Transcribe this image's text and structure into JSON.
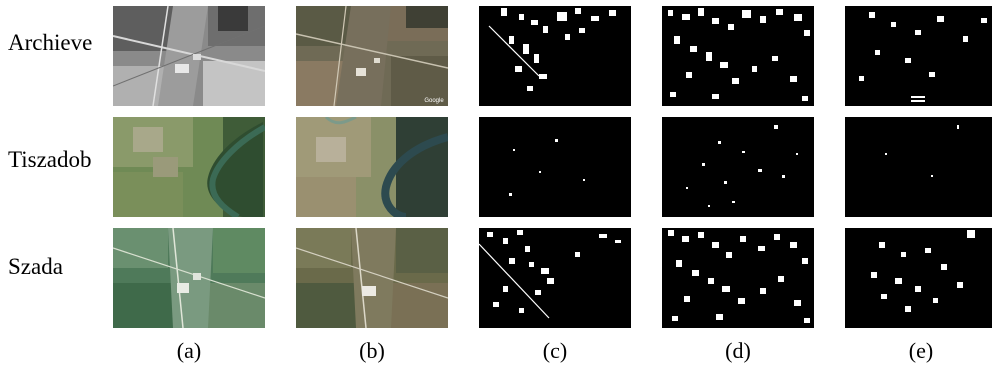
{
  "figure": {
    "rows": [
      {
        "label": "Archieve"
      },
      {
        "label": "Tiszadob"
      },
      {
        "label": "Szada"
      }
    ],
    "columns": [
      {
        "label": "(a)"
      },
      {
        "label": "(b)"
      },
      {
        "label": "(c)"
      },
      {
        "label": "(d)"
      },
      {
        "label": "(e)"
      }
    ],
    "watermark": "Google"
  }
}
